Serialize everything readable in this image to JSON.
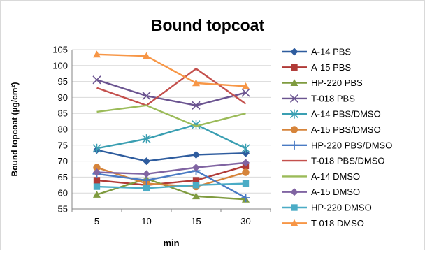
{
  "chart_data": {
    "type": "line",
    "title": "Bound topcoat",
    "xlabel": "min",
    "ylabel": "Bound topcoat (µg/cm²)",
    "categories": [
      "5",
      "10",
      "15",
      "30"
    ],
    "ylim": [
      55,
      105
    ],
    "yticks": [
      55,
      60,
      65,
      70,
      75,
      80,
      85,
      90,
      95,
      100,
      105
    ],
    "grid": true,
    "legend_position": "right",
    "series": [
      {
        "name": "A-14 PBS",
        "color": "#2e5c9e",
        "marker": "diamond",
        "values": [
          73.5,
          70,
          72,
          72.5
        ]
      },
      {
        "name": "A-15 PBS",
        "color": "#b03a37",
        "marker": "square",
        "values": [
          64,
          62.5,
          64,
          68.5
        ]
      },
      {
        "name": "HP-220 PBS",
        "color": "#7f9b3f",
        "marker": "triangle",
        "values": [
          59.5,
          64.5,
          59,
          58
        ]
      },
      {
        "name": "T-018 PBS",
        "color": "#6b5490",
        "marker": "x",
        "values": [
          95.5,
          90.5,
          87.5,
          91.5
        ]
      },
      {
        "name": "A-14 PBS/DMSO",
        "color": "#3a9fb2",
        "marker": "asterisk",
        "values": [
          74,
          77,
          81.5,
          74
        ]
      },
      {
        "name": "A-15 PBS/DMSO",
        "color": "#d6843a",
        "marker": "circle",
        "values": [
          68,
          63,
          62,
          66.5
        ]
      },
      {
        "name": "HP-220 PBS/DMSO",
        "color": "#4a7bc4",
        "marker": "plus",
        "values": [
          66,
          64,
          67,
          58.5
        ]
      },
      {
        "name": "T-018 PBS/DMSO",
        "color": "#c4504d",
        "marker": "none",
        "values": [
          93,
          87.5,
          99,
          88
        ]
      },
      {
        "name": "A-14 DMSO",
        "color": "#9bbb59",
        "marker": "none",
        "values": [
          85.5,
          87.5,
          81,
          85
        ]
      },
      {
        "name": "A-15 DMSO",
        "color": "#8064a2",
        "marker": "diamond",
        "values": [
          66.5,
          66,
          68,
          69.5
        ]
      },
      {
        "name": "HP-220 DMSO",
        "color": "#4bacc6",
        "marker": "square",
        "values": [
          62,
          61.5,
          62.5,
          63
        ]
      },
      {
        "name": "T-018 DMSO",
        "color": "#f79646",
        "marker": "triangle",
        "values": [
          103.5,
          103,
          94.5,
          93.5
        ]
      }
    ]
  }
}
